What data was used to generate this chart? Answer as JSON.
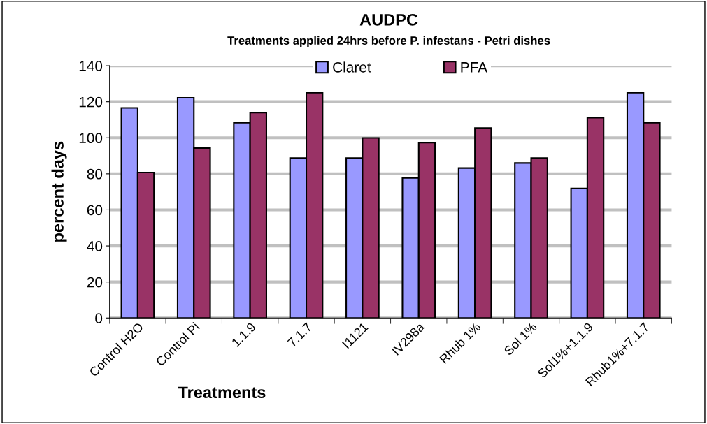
{
  "chart_data": {
    "type": "bar",
    "title": "AUDPC",
    "subtitle": "Treatments applied 24hrs before P. infestans - Petri dishes",
    "xlabel": "Treatments",
    "ylabel": "percent days",
    "categories": [
      "Control H2O",
      "Control Pi",
      "1.1.9",
      "7.1.7",
      "I1121",
      "IV298a",
      "Rhub 1%",
      "Sol 1%",
      "Sol1%+1.1.9",
      "Rhub1%+7.1.7"
    ],
    "series": [
      {
        "name": "Claret",
        "color": "#9999ff",
        "values": [
          116.6,
          122.2,
          108.4,
          88.8,
          88.8,
          77.7,
          83.2,
          86.0,
          71.9,
          125.0
        ]
      },
      {
        "name": "PFA",
        "color": "#993366",
        "values": [
          80.7,
          94.3,
          114.0,
          125.0,
          99.9,
          97.3,
          105.4,
          88.8,
          111.2,
          108.4
        ]
      }
    ],
    "ylim": [
      0,
      140
    ],
    "yticks": [
      0,
      20,
      40,
      60,
      80,
      100,
      120,
      140
    ],
    "grid": "y",
    "legend": "top"
  }
}
